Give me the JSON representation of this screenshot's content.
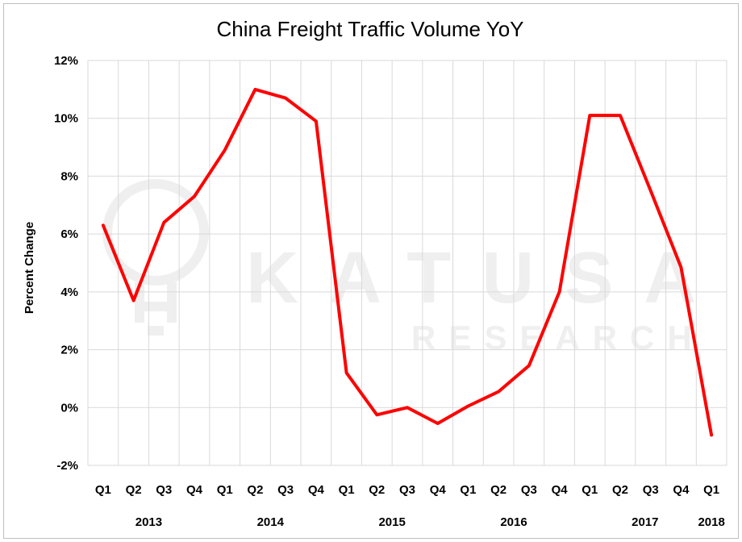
{
  "chart_data": {
    "type": "line",
    "title": "China Freight Traffic Volume YoY",
    "ylabel": "Percent Change",
    "xlabel": "",
    "ylim": [
      -2,
      12
    ],
    "y_ticks": [
      "-2%",
      "0%",
      "2%",
      "4%",
      "6%",
      "8%",
      "10%",
      "12%"
    ],
    "y_tick_values": [
      -2,
      0,
      2,
      4,
      6,
      8,
      10,
      12
    ],
    "grid": true,
    "categories": [
      "Q1",
      "Q2",
      "Q3",
      "Q4",
      "Q1",
      "Q2",
      "Q3",
      "Q4",
      "Q1",
      "Q2",
      "Q3",
      "Q4",
      "Q1",
      "Q2",
      "Q3",
      "Q4",
      "Q1",
      "Q2",
      "Q3",
      "Q4",
      "Q1"
    ],
    "year_labels": [
      "2013",
      "2014",
      "2015",
      "2016",
      "2017",
      "2018"
    ],
    "series": [
      {
        "color": "#ff0000",
        "values": [
          6.3,
          3.7,
          6.4,
          7.3,
          8.9,
          11.0,
          10.7,
          9.9,
          1.2,
          -0.25,
          0.0,
          -0.55,
          0.05,
          0.55,
          1.45,
          4.0,
          10.1,
          10.1,
          7.5,
          4.85,
          -0.95
        ]
      }
    ],
    "watermark": {
      "line1": "KATUSA",
      "line2": "RESEARCH"
    }
  }
}
